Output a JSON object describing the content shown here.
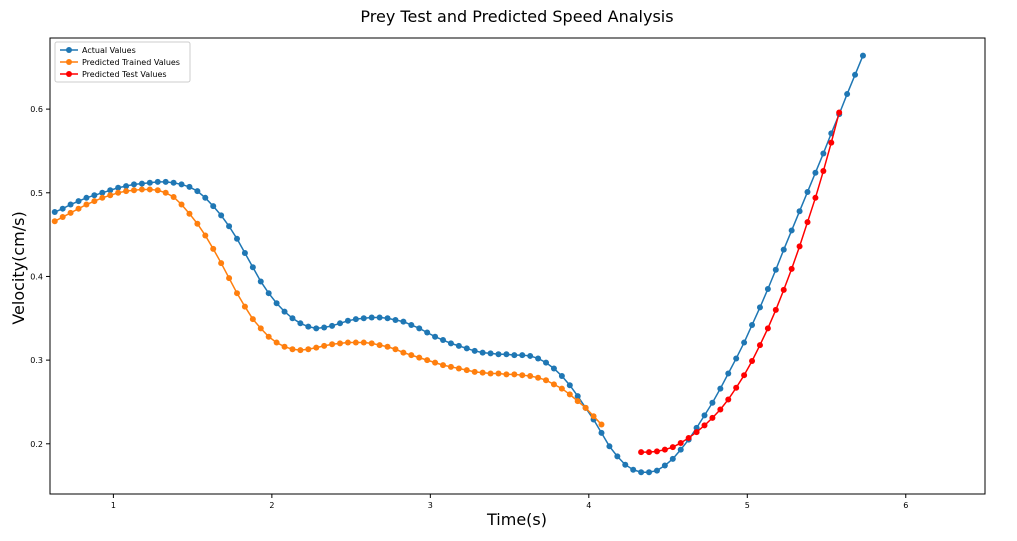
{
  "chart_data": {
    "type": "line",
    "title": "Prey Test and Predicted Speed Analysis",
    "xlabel": "Time(s)",
    "ylabel": "Velocity(cm/s)",
    "xlim": [
      0.6,
      6.5
    ],
    "ylim": [
      0.14,
      0.685
    ],
    "xticks": [
      1,
      2,
      3,
      4,
      5,
      6
    ],
    "yticks": [
      0.2,
      0.3,
      0.4,
      0.5,
      0.6
    ],
    "grid": false,
    "legend_position": "top-left",
    "series": [
      {
        "name": "Actual Values",
        "color": "#1f77b4",
        "points": [
          [
            0.63,
            0.477
          ],
          [
            0.68,
            0.481
          ],
          [
            0.73,
            0.486
          ],
          [
            0.78,
            0.49
          ],
          [
            0.83,
            0.494
          ],
          [
            0.88,
            0.497
          ],
          [
            0.93,
            0.5
          ],
          [
            0.98,
            0.503
          ],
          [
            1.03,
            0.506
          ],
          [
            1.08,
            0.508
          ],
          [
            1.13,
            0.51
          ],
          [
            1.18,
            0.511
          ],
          [
            1.23,
            0.512
          ],
          [
            1.28,
            0.513
          ],
          [
            1.33,
            0.513
          ],
          [
            1.38,
            0.512
          ],
          [
            1.43,
            0.51
          ],
          [
            1.48,
            0.507
          ],
          [
            1.53,
            0.502
          ],
          [
            1.58,
            0.494
          ],
          [
            1.63,
            0.484
          ],
          [
            1.68,
            0.473
          ],
          [
            1.73,
            0.46
          ],
          [
            1.78,
            0.445
          ],
          [
            1.83,
            0.428
          ],
          [
            1.88,
            0.411
          ],
          [
            1.93,
            0.394
          ],
          [
            1.98,
            0.38
          ],
          [
            2.03,
            0.368
          ],
          [
            2.08,
            0.358
          ],
          [
            2.13,
            0.35
          ],
          [
            2.18,
            0.344
          ],
          [
            2.23,
            0.34
          ],
          [
            2.28,
            0.338
          ],
          [
            2.33,
            0.339
          ],
          [
            2.38,
            0.341
          ],
          [
            2.43,
            0.344
          ],
          [
            2.48,
            0.347
          ],
          [
            2.53,
            0.349
          ],
          [
            2.58,
            0.35
          ],
          [
            2.63,
            0.351
          ],
          [
            2.68,
            0.351
          ],
          [
            2.73,
            0.35
          ],
          [
            2.78,
            0.348
          ],
          [
            2.83,
            0.346
          ],
          [
            2.88,
            0.342
          ],
          [
            2.93,
            0.338
          ],
          [
            2.98,
            0.333
          ],
          [
            3.03,
            0.328
          ],
          [
            3.08,
            0.324
          ],
          [
            3.13,
            0.32
          ],
          [
            3.18,
            0.317
          ],
          [
            3.23,
            0.314
          ],
          [
            3.28,
            0.311
          ],
          [
            3.33,
            0.309
          ],
          [
            3.38,
            0.308
          ],
          [
            3.43,
            0.307
          ],
          [
            3.48,
            0.307
          ],
          [
            3.53,
            0.306
          ],
          [
            3.58,
            0.306
          ],
          [
            3.63,
            0.305
          ],
          [
            3.68,
            0.302
          ],
          [
            3.73,
            0.297
          ],
          [
            3.78,
            0.29
          ],
          [
            3.83,
            0.281
          ],
          [
            3.88,
            0.27
          ],
          [
            3.93,
            0.257
          ],
          [
            3.98,
            0.243
          ],
          [
            4.03,
            0.229
          ],
          [
            4.08,
            0.213
          ],
          [
            4.13,
            0.197
          ],
          [
            4.18,
            0.185
          ],
          [
            4.23,
            0.175
          ],
          [
            4.28,
            0.169
          ],
          [
            4.33,
            0.166
          ],
          [
            4.38,
            0.166
          ],
          [
            4.43,
            0.168
          ],
          [
            4.48,
            0.174
          ],
          [
            4.53,
            0.182
          ],
          [
            4.58,
            0.193
          ],
          [
            4.63,
            0.205
          ],
          [
            4.68,
            0.219
          ],
          [
            4.73,
            0.234
          ],
          [
            4.78,
            0.249
          ],
          [
            4.83,
            0.266
          ],
          [
            4.88,
            0.284
          ],
          [
            4.93,
            0.302
          ],
          [
            4.98,
            0.321
          ],
          [
            5.03,
            0.342
          ],
          [
            5.08,
            0.363
          ],
          [
            5.13,
            0.385
          ],
          [
            5.18,
            0.408
          ],
          [
            5.23,
            0.432
          ],
          [
            5.28,
            0.455
          ],
          [
            5.33,
            0.478
          ],
          [
            5.38,
            0.501
          ],
          [
            5.43,
            0.524
          ],
          [
            5.48,
            0.547
          ],
          [
            5.53,
            0.571
          ],
          [
            5.58,
            0.594
          ],
          [
            5.63,
            0.618
          ],
          [
            5.68,
            0.641
          ],
          [
            5.73,
            0.664
          ]
        ]
      },
      {
        "name": "Predicted Trained Values",
        "color": "#ff7f0e",
        "points": [
          [
            0.63,
            0.466
          ],
          [
            0.68,
            0.471
          ],
          [
            0.73,
            0.476
          ],
          [
            0.78,
            0.481
          ],
          [
            0.83,
            0.486
          ],
          [
            0.88,
            0.49
          ],
          [
            0.93,
            0.494
          ],
          [
            0.98,
            0.497
          ],
          [
            1.03,
            0.5
          ],
          [
            1.08,
            0.502
          ],
          [
            1.13,
            0.503
          ],
          [
            1.18,
            0.504
          ],
          [
            1.23,
            0.504
          ],
          [
            1.28,
            0.503
          ],
          [
            1.33,
            0.5
          ],
          [
            1.38,
            0.495
          ],
          [
            1.43,
            0.486
          ],
          [
            1.48,
            0.475
          ],
          [
            1.53,
            0.463
          ],
          [
            1.58,
            0.449
          ],
          [
            1.63,
            0.433
          ],
          [
            1.68,
            0.416
          ],
          [
            1.73,
            0.398
          ],
          [
            1.78,
            0.38
          ],
          [
            1.83,
            0.364
          ],
          [
            1.88,
            0.349
          ],
          [
            1.93,
            0.338
          ],
          [
            1.98,
            0.328
          ],
          [
            2.03,
            0.321
          ],
          [
            2.08,
            0.316
          ],
          [
            2.13,
            0.313
          ],
          [
            2.18,
            0.312
          ],
          [
            2.23,
            0.313
          ],
          [
            2.28,
            0.315
          ],
          [
            2.33,
            0.317
          ],
          [
            2.38,
            0.319
          ],
          [
            2.43,
            0.32
          ],
          [
            2.48,
            0.321
          ],
          [
            2.53,
            0.321
          ],
          [
            2.58,
            0.321
          ],
          [
            2.63,
            0.32
          ],
          [
            2.68,
            0.318
          ],
          [
            2.73,
            0.316
          ],
          [
            2.78,
            0.313
          ],
          [
            2.83,
            0.309
          ],
          [
            2.88,
            0.306
          ],
          [
            2.93,
            0.303
          ],
          [
            2.98,
            0.3
          ],
          [
            3.03,
            0.297
          ],
          [
            3.08,
            0.294
          ],
          [
            3.13,
            0.292
          ],
          [
            3.18,
            0.29
          ],
          [
            3.23,
            0.288
          ],
          [
            3.28,
            0.286
          ],
          [
            3.33,
            0.285
          ],
          [
            3.38,
            0.284
          ],
          [
            3.43,
            0.284
          ],
          [
            3.48,
            0.283
          ],
          [
            3.53,
            0.283
          ],
          [
            3.58,
            0.282
          ],
          [
            3.63,
            0.281
          ],
          [
            3.68,
            0.279
          ],
          [
            3.73,
            0.276
          ],
          [
            3.78,
            0.271
          ],
          [
            3.83,
            0.266
          ],
          [
            3.88,
            0.259
          ],
          [
            3.93,
            0.251
          ],
          [
            3.98,
            0.243
          ],
          [
            4.03,
            0.233
          ],
          [
            4.08,
            0.223
          ]
        ]
      },
      {
        "name": "Predicted Test Values",
        "color": "#ff0000",
        "points": [
          [
            4.33,
            0.19
          ],
          [
            4.38,
            0.19
          ],
          [
            4.43,
            0.191
          ],
          [
            4.48,
            0.193
          ],
          [
            4.53,
            0.196
          ],
          [
            4.58,
            0.201
          ],
          [
            4.63,
            0.207
          ],
          [
            4.68,
            0.214
          ],
          [
            4.73,
            0.222
          ],
          [
            4.78,
            0.231
          ],
          [
            4.83,
            0.241
          ],
          [
            4.88,
            0.253
          ],
          [
            4.93,
            0.267
          ],
          [
            4.98,
            0.282
          ],
          [
            5.03,
            0.299
          ],
          [
            5.08,
            0.318
          ],
          [
            5.13,
            0.338
          ],
          [
            5.18,
            0.36
          ],
          [
            5.23,
            0.384
          ],
          [
            5.28,
            0.409
          ],
          [
            5.33,
            0.436
          ],
          [
            5.38,
            0.465
          ],
          [
            5.43,
            0.494
          ],
          [
            5.48,
            0.526
          ],
          [
            5.53,
            0.56
          ],
          [
            5.58,
            0.596
          ]
        ]
      }
    ]
  }
}
